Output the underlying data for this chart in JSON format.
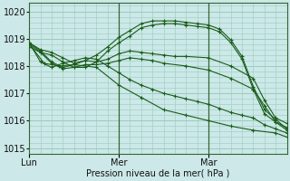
{
  "background_color": "#cce8e8",
  "grid_color": "#99ccbb",
  "line_color": "#1a5c1a",
  "marker_color": "#1a5c1a",
  "xlabel": "Pression niveau de la mer( hPa )",
  "ylim": [
    1014.8,
    1020.3
  ],
  "yticks": [
    1015,
    1016,
    1017,
    1018,
    1019,
    1020
  ],
  "vline_color": "#336633",
  "series": [
    {
      "x": [
        0,
        6,
        12,
        18,
        24,
        30,
        36,
        42,
        48,
        54,
        60,
        66,
        72,
        78,
        84,
        90,
        96,
        102,
        108,
        114,
        120,
        126,
        132,
        138
      ],
      "y": [
        1018.85,
        1018.6,
        1018.5,
        1018.3,
        1018.1,
        1018.2,
        1018.4,
        1018.7,
        1019.05,
        1019.3,
        1019.55,
        1019.65,
        1019.65,
        1019.65,
        1019.6,
        1019.55,
        1019.5,
        1019.35,
        1018.95,
        1018.35,
        1017.25,
        1016.4,
        1016.05,
        1015.7
      ]
    },
    {
      "x": [
        0,
        6,
        12,
        18,
        24,
        30,
        36,
        42,
        48,
        54,
        60,
        66,
        72,
        78,
        84,
        90,
        96,
        102,
        108,
        114,
        120,
        126,
        132,
        138
      ],
      "y": [
        1018.7,
        1018.5,
        1018.4,
        1018.15,
        1017.95,
        1017.95,
        1018.15,
        1018.55,
        1018.85,
        1019.1,
        1019.4,
        1019.5,
        1019.55,
        1019.55,
        1019.5,
        1019.45,
        1019.4,
        1019.25,
        1018.85,
        1018.25,
        1017.15,
        1016.25,
        1015.95,
        1015.65
      ]
    },
    {
      "x": [
        0,
        6,
        12,
        18,
        24,
        30,
        36,
        42,
        48,
        54,
        60,
        66,
        72,
        78,
        84,
        96,
        108,
        120,
        126,
        132,
        138
      ],
      "y": [
        1018.85,
        1018.55,
        1018.15,
        1017.95,
        1018.05,
        1018.2,
        1018.15,
        1018.25,
        1018.45,
        1018.55,
        1018.5,
        1018.45,
        1018.4,
        1018.35,
        1018.35,
        1018.3,
        1018.0,
        1017.55,
        1016.75,
        1016.1,
        1015.9
      ]
    },
    {
      "x": [
        0,
        6,
        12,
        18,
        24,
        30,
        36,
        42,
        48,
        54,
        60,
        66,
        72,
        84,
        96,
        108,
        120,
        126,
        132,
        138
      ],
      "y": [
        1018.8,
        1018.5,
        1018.1,
        1017.9,
        1017.95,
        1018.05,
        1018.05,
        1018.1,
        1018.2,
        1018.3,
        1018.25,
        1018.2,
        1018.1,
        1018.0,
        1017.85,
        1017.55,
        1017.15,
        1016.55,
        1015.95,
        1015.75
      ]
    },
    {
      "x": [
        0,
        6,
        12,
        18,
        24,
        30,
        36,
        42,
        48,
        54,
        60,
        66,
        72,
        78,
        84,
        90,
        96,
        102,
        108,
        114,
        120,
        126,
        132,
        138
      ],
      "y": [
        1018.85,
        1018.15,
        1017.95,
        1018.1,
        1018.2,
        1018.3,
        1018.25,
        1018.0,
        1017.75,
        1017.5,
        1017.3,
        1017.15,
        1017.0,
        1016.9,
        1016.8,
        1016.7,
        1016.6,
        1016.45,
        1016.3,
        1016.2,
        1016.1,
        1015.85,
        1015.7,
        1015.55
      ]
    },
    {
      "x": [
        0,
        8,
        16,
        24,
        36,
        48,
        60,
        72,
        84,
        96,
        108,
        120,
        132,
        138
      ],
      "y": [
        1018.8,
        1018.1,
        1018.0,
        1018.05,
        1017.95,
        1017.3,
        1016.85,
        1016.4,
        1016.2,
        1016.0,
        1015.8,
        1015.65,
        1015.55,
        1015.4
      ]
    }
  ],
  "xtick_hours": [
    0,
    48,
    96
  ],
  "xtick_labels": [
    "Lun",
    "Mer",
    "Mar"
  ],
  "xmax": 138,
  "vlines_hours": [
    48,
    96
  ]
}
